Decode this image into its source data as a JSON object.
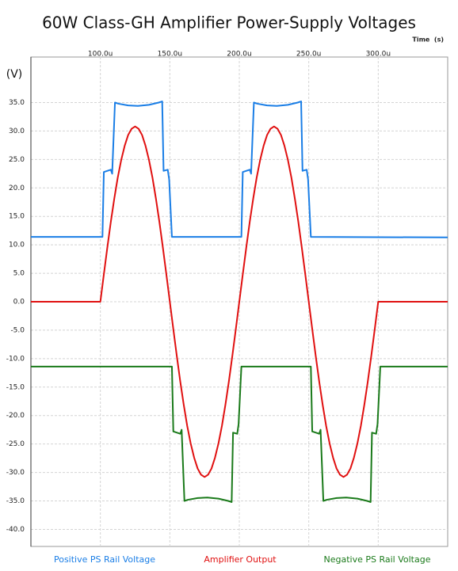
{
  "chart_data": {
    "type": "line",
    "title": "60W Class-GH Amplifier Power-Supply Voltages",
    "xlabel": "Time  (s)",
    "ylabel": "(V)",
    "xlim": [
      50,
      350
    ],
    "ylim": [
      -43,
      43
    ],
    "xticks": [
      {
        "value": 100,
        "label": "100.0u"
      },
      {
        "value": 150,
        "label": "150.0u"
      },
      {
        "value": 200,
        "label": "200.0u"
      },
      {
        "value": 250,
        "label": "250.0u"
      },
      {
        "value": 300,
        "label": "300.0u"
      }
    ],
    "yticks": [
      {
        "value": 35,
        "label": "35.0"
      },
      {
        "value": 30,
        "label": "30.0"
      },
      {
        "value": 25,
        "label": "25.0"
      },
      {
        "value": 20,
        "label": "20.0"
      },
      {
        "value": 15,
        "label": "15.0"
      },
      {
        "value": 10,
        "label": "10.0"
      },
      {
        "value": 5,
        "label": "5.0"
      },
      {
        "value": 0,
        "label": "0.0"
      },
      {
        "value": -5,
        "label": "-5.0"
      },
      {
        "value": -10,
        "label": "-10.0"
      },
      {
        "value": -15,
        "label": "-15.0"
      },
      {
        "value": -20,
        "label": "-20.0"
      },
      {
        "value": -25,
        "label": "-25.0"
      },
      {
        "value": -30,
        "label": "-30.0"
      },
      {
        "value": -35,
        "label": "-35.0"
      },
      {
        "value": -40,
        "label": "-40.0"
      }
    ],
    "grid": true,
    "series": [
      {
        "name": "Positive PS Rail Voltage",
        "color": "#1a7ee6",
        "x": [
          50,
          101.5,
          102.5,
          107.5,
          108.5,
          110.5,
          113,
          120,
          127,
          135,
          142,
          144.5,
          145.5,
          148.5,
          149.5,
          151.5,
          201.5,
          202.5,
          207.5,
          208.5,
          210.5,
          213,
          220,
          227,
          235,
          242,
          244.5,
          245.5,
          248.5,
          249.5,
          251.5,
          350
        ],
        "values": [
          11.4,
          11.4,
          22.8,
          23.2,
          22.5,
          35,
          34.8,
          34.5,
          34.4,
          34.6,
          35,
          35.2,
          23,
          23.2,
          21.5,
          11.4,
          11.4,
          22.8,
          23.2,
          22.5,
          35,
          34.8,
          34.5,
          34.4,
          34.6,
          35,
          35.2,
          23,
          23.2,
          21.5,
          11.4,
          11.3
        ]
      },
      {
        "name": "Amplifier Output",
        "color": "#e01010",
        "x": [
          50,
          100,
          102.5,
          105,
          107.5,
          110,
          112.5,
          115,
          117.5,
          120,
          122.5,
          125,
          127.5,
          130,
          132.5,
          135,
          137.5,
          140,
          142.5,
          145,
          147.5,
          150,
          152.5,
          155,
          157.5,
          160,
          162.5,
          165,
          167.5,
          170,
          172.5,
          175,
          177.5,
          180,
          182.5,
          185,
          187.5,
          190,
          192.5,
          195,
          197.5,
          200,
          202.5,
          205,
          207.5,
          210,
          212.5,
          215,
          217.5,
          220,
          222.5,
          225,
          227.5,
          230,
          232.5,
          235,
          237.5,
          240,
          242.5,
          245,
          247.5,
          250,
          252.5,
          255,
          257.5,
          260,
          262.5,
          265,
          267.5,
          270,
          272.5,
          275,
          277.5,
          280,
          282.5,
          285,
          287.5,
          290,
          292.5,
          295,
          297.5,
          300,
          350
        ],
        "values": [
          0,
          0,
          4.8,
          9.5,
          14,
          18.1,
          21.8,
          24.9,
          27.4,
          29.3,
          30.4,
          30.8,
          30.4,
          29.3,
          27.4,
          24.9,
          21.8,
          18.1,
          14,
          9.5,
          4.8,
          0,
          -4.8,
          -9.5,
          -14,
          -18.1,
          -21.8,
          -24.9,
          -27.4,
          -29.3,
          -30.4,
          -30.8,
          -30.4,
          -29.3,
          -27.4,
          -24.9,
          -21.8,
          -18.1,
          -14,
          -9.5,
          -4.8,
          0,
          4.8,
          9.5,
          14,
          18.1,
          21.8,
          24.9,
          27.4,
          29.3,
          30.4,
          30.8,
          30.4,
          29.3,
          27.4,
          24.9,
          21.8,
          18.1,
          14,
          9.5,
          4.8,
          0,
          -4.8,
          -9.5,
          -14,
          -18.1,
          -21.8,
          -24.9,
          -27.4,
          -29.3,
          -30.4,
          -30.8,
          -30.4,
          -29.3,
          -27.4,
          -24.9,
          -21.8,
          -18.1,
          -14,
          -9.5,
          -4.8,
          0,
          0
        ]
      },
      {
        "name": "Negative PS Rail Voltage",
        "color": "#1a7a1a",
        "x": [
          50,
          151.5,
          152.5,
          157.5,
          158.5,
          160.5,
          163,
          170,
          177,
          185,
          192,
          194.5,
          195.5,
          198.5,
          199.5,
          201.5,
          251.5,
          252.5,
          257.5,
          258.5,
          260.5,
          263,
          270,
          277,
          285,
          292,
          294.5,
          295.5,
          298.5,
          299.5,
          301.5,
          350
        ],
        "values": [
          -11.4,
          -11.4,
          -22.8,
          -23.2,
          -22.5,
          -35,
          -34.8,
          -34.5,
          -34.4,
          -34.6,
          -35,
          -35.2,
          -23,
          -23.2,
          -21.5,
          -11.4,
          -11.4,
          -22.8,
          -23.2,
          -22.5,
          -35,
          -34.8,
          -34.5,
          -34.4,
          -34.6,
          -35,
          -35.2,
          -23,
          -23.2,
          -21.5,
          -11.4,
          -11.4
        ]
      }
    ]
  }
}
